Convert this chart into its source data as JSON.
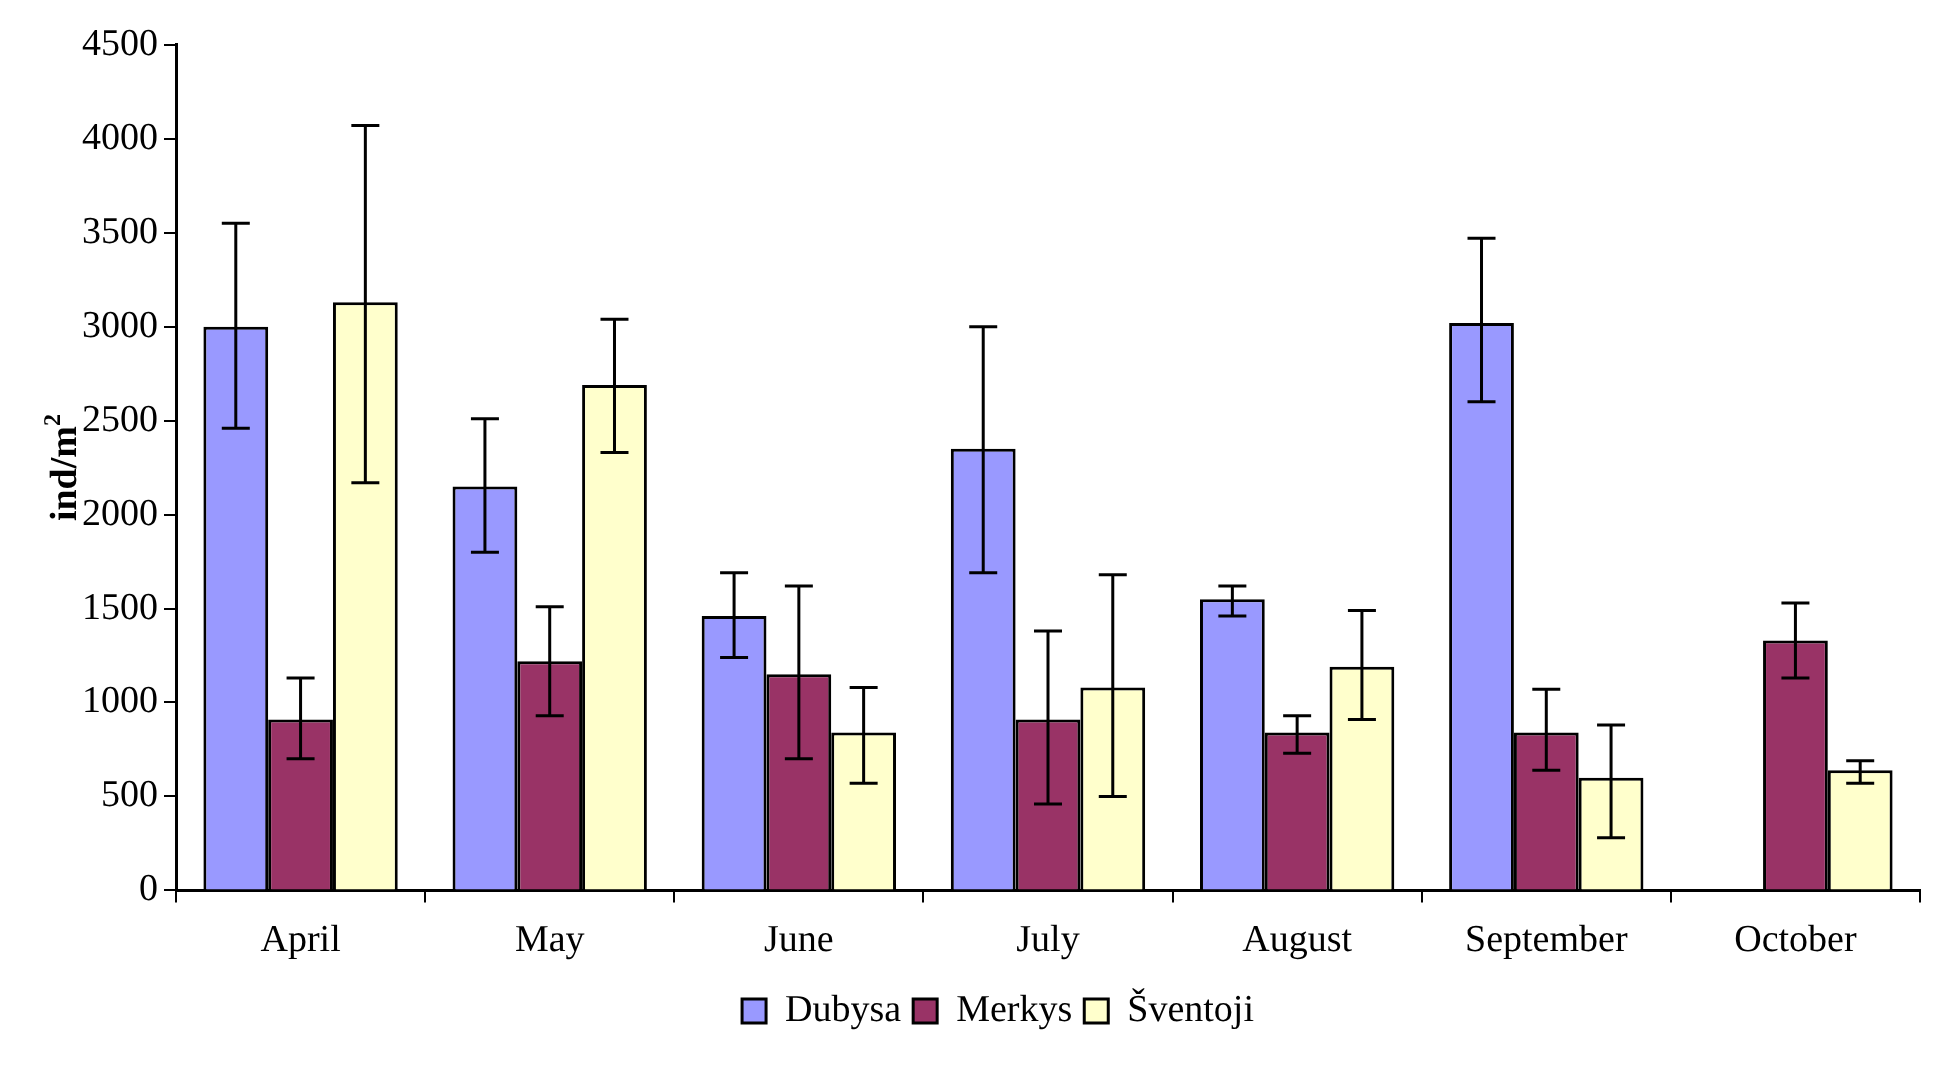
{
  "chart_data": {
    "type": "bar",
    "ylabel": "ind/m$^{2}$",
    "categories": [
      "April",
      "May",
      "June",
      "July",
      "August",
      "September",
      "October"
    ],
    "series": [
      {
        "name": "Dubysa",
        "color": "#9999ff",
        "values": [
          3000,
          2150,
          1460,
          2350,
          1550,
          3020,
          null
        ],
        "errors": [
          [
            2460,
            3550
          ],
          [
            1800,
            2510
          ],
          [
            1240,
            1690
          ],
          [
            1690,
            3000
          ],
          [
            1460,
            1620
          ],
          [
            2600,
            3470
          ],
          null
        ]
      },
      {
        "name": "Merkys",
        "color": "#993366",
        "values": [
          910,
          1220,
          1150,
          910,
          840,
          840,
          1330
        ],
        "errors": [
          [
            700,
            1130
          ],
          [
            930,
            1510
          ],
          [
            700,
            1620
          ],
          [
            460,
            1380
          ],
          [
            730,
            930
          ],
          [
            640,
            1070
          ],
          [
            1130,
            1530
          ]
        ]
      },
      {
        "name": "Šventoji",
        "color": "#ffffcc",
        "values": [
          3130,
          2690,
          840,
          1080,
          1190,
          600,
          640
        ],
        "errors": [
          [
            2170,
            4070
          ],
          [
            2330,
            3040
          ],
          [
            570,
            1080
          ],
          [
            500,
            1680
          ],
          [
            910,
            1490
          ],
          [
            280,
            880
          ],
          [
            570,
            690
          ]
        ]
      }
    ],
    "ylim": [
      0,
      4500
    ],
    "yticks": [
      0,
      500,
      1000,
      1500,
      2000,
      2500,
      3000,
      3500,
      4000,
      4500
    ],
    "grid": false,
    "legend": "bottom"
  }
}
